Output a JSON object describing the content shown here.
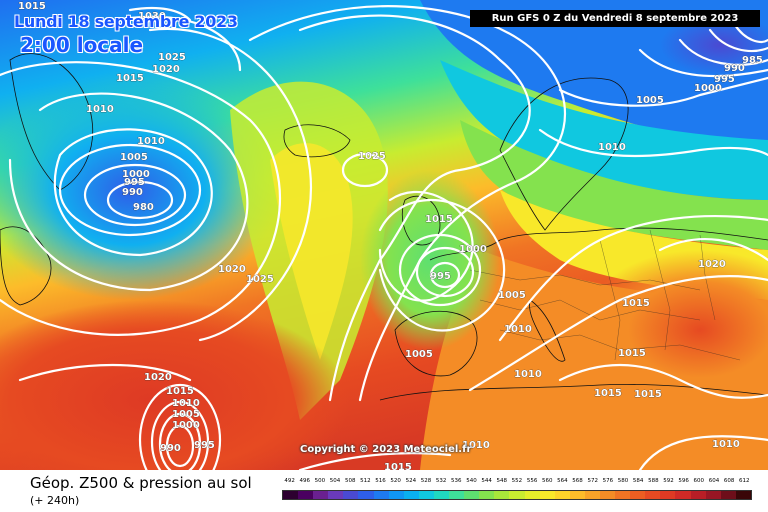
{
  "header": {
    "date": "Lundi 18 septembre 2023",
    "local_time": "2:00 locale",
    "run_info": "Run GFS 0 Z du Vendredi 8 septembre 2023"
  },
  "copyright": "Copyright © 2023 Meteociel.fr",
  "footer": {
    "title": "Géop. Z500 & pression au sol",
    "lead_time": "(+ 240h)"
  },
  "scale": {
    "values": [
      "492",
      "496",
      "500",
      "504",
      "508",
      "512",
      "516",
      "520",
      "524",
      "528",
      "532",
      "536",
      "540",
      "544",
      "548",
      "552",
      "556",
      "560",
      "564",
      "568",
      "572",
      "576",
      "580",
      "584",
      "588",
      "592",
      "596",
      "600",
      "604",
      "608",
      "612"
    ],
    "colors": [
      "#2d0030",
      "#4a0060",
      "#6a2090",
      "#6a3aba",
      "#4a4ad2",
      "#2e5ee8",
      "#1e7af0",
      "#1096f4",
      "#0ab0f0",
      "#10c8e0",
      "#20d8c0",
      "#3ee09a",
      "#5ee070",
      "#84e24e",
      "#a8e63a",
      "#c8ec30",
      "#e4ee2a",
      "#f8e82a",
      "#fcd42a",
      "#fcbc2a",
      "#f8a428",
      "#f48c26",
      "#f07424",
      "#ec5e22",
      "#e64a22",
      "#de3a24",
      "#d02a26",
      "#b81e26",
      "#981624",
      "#6e0e1a",
      "#3a0608"
    ]
  },
  "isobar_labels": [
    {
      "id": "l1030",
      "text": "1030"
    },
    {
      "id": "l1025a",
      "text": "1025"
    },
    {
      "id": "l1020a",
      "text": "1020"
    },
    {
      "id": "l1015a",
      "text": "1015"
    },
    {
      "id": "l1010a",
      "text": "1010"
    },
    {
      "id": "l1015b",
      "text": "1015"
    },
    {
      "id": "l1010b",
      "text": "1010"
    },
    {
      "id": "l1005a",
      "text": "1005"
    },
    {
      "id": "l1000a",
      "text": "1000"
    },
    {
      "id": "l995a",
      "text": "995"
    },
    {
      "id": "l990a",
      "text": "990"
    },
    {
      "id": "l980",
      "text": "980"
    },
    {
      "id": "l1025b",
      "text": "1025"
    },
    {
      "id": "l1020b",
      "text": "1020"
    },
    {
      "id": "l1025c",
      "text": "1025"
    },
    {
      "id": "l1015c",
      "text": "1015"
    },
    {
      "id": "l1000b",
      "text": "1000"
    },
    {
      "id": "l995b",
      "text": "995"
    },
    {
      "id": "l1005b",
      "text": "1005"
    },
    {
      "id": "l1010c",
      "text": "1010"
    },
    {
      "id": "l1005c",
      "text": "1005"
    },
    {
      "id": "l1010d",
      "text": "1010"
    },
    {
      "id": "l1015d",
      "text": "1015"
    },
    {
      "id": "l1015e",
      "text": "1015"
    },
    {
      "id": "l1015f",
      "text": "1015"
    },
    {
      "id": "l1015g",
      "text": "1015"
    },
    {
      "id": "l1020c",
      "text": "1020"
    },
    {
      "id": "l1010e",
      "text": "1010"
    },
    {
      "id": "l1005d",
      "text": "1005"
    },
    {
      "id": "l1000c",
      "text": "1000"
    },
    {
      "id": "l995c",
      "text": "995"
    },
    {
      "id": "l990b",
      "text": "990"
    },
    {
      "id": "l985",
      "text": "985"
    },
    {
      "id": "l1010f",
      "text": "1010"
    },
    {
      "id": "l1020d",
      "text": "1020"
    },
    {
      "id": "l1015h",
      "text": "1015"
    },
    {
      "id": "l1010g",
      "text": "1010"
    },
    {
      "id": "l1005e",
      "text": "1005"
    },
    {
      "id": "l1000d",
      "text": "1000"
    },
    {
      "id": "l995d",
      "text": "995"
    },
    {
      "id": "l990c",
      "text": "990"
    },
    {
      "id": "l1010h",
      "text": "1010"
    },
    {
      "id": "l1015i",
      "text": "1015"
    },
    {
      "id": "l1010i",
      "text": "1010"
    }
  ]
}
